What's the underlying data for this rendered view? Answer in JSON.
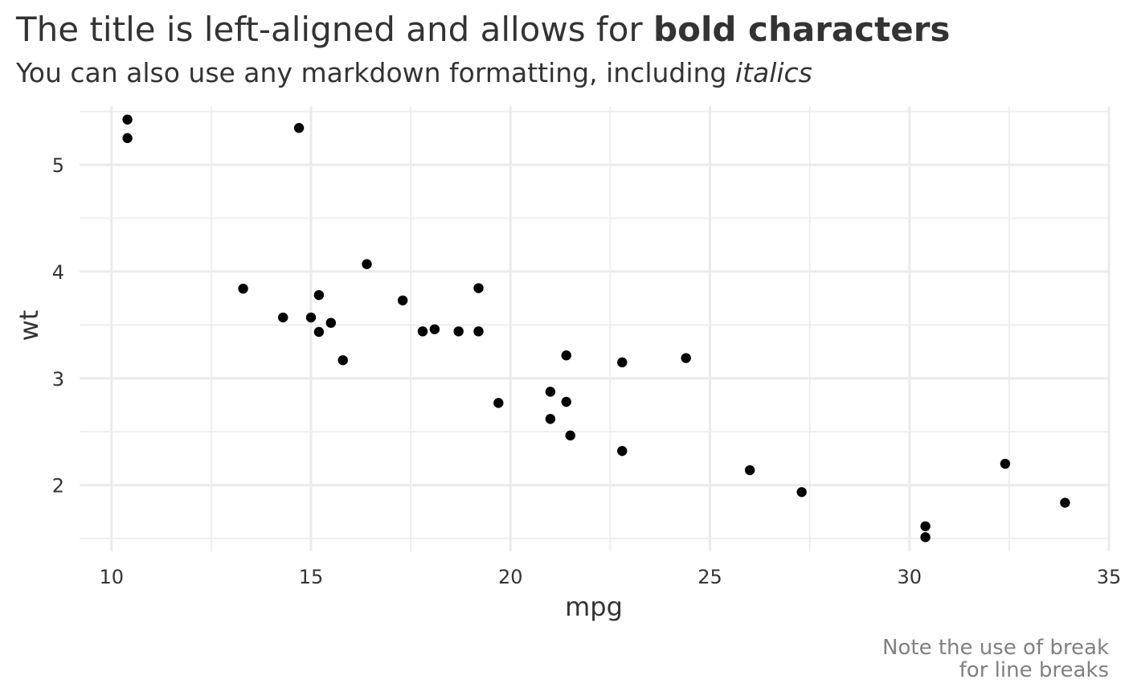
{
  "chart_data": {
    "type": "scatter",
    "title_plain": "The title is left-aligned and allows for ",
    "title_bold": "bold characters",
    "subtitle_plain": "You can also use any markdown formatting, including ",
    "subtitle_italic": "italics",
    "xlabel": "mpg",
    "ylabel": "wt",
    "caption": [
      "Note the use of break",
      "for line breaks"
    ],
    "xlim": [
      9.2,
      35
    ],
    "ylim": [
      1.38,
      5.55
    ],
    "x_ticks": [
      10,
      15,
      20,
      25,
      30,
      35
    ],
    "y_ticks": [
      2,
      3,
      4,
      5
    ],
    "x_minor": [
      12.5,
      17.5,
      22.5,
      27.5,
      32.5
    ],
    "y_minor": [
      1.5,
      2.5,
      3.5,
      4.5,
      5.5
    ],
    "grid": true,
    "points": [
      {
        "x": 21.0,
        "y": 2.62
      },
      {
        "x": 21.0,
        "y": 2.875
      },
      {
        "x": 22.8,
        "y": 2.32
      },
      {
        "x": 21.4,
        "y": 3.215
      },
      {
        "x": 18.7,
        "y": 3.44
      },
      {
        "x": 18.1,
        "y": 3.46
      },
      {
        "x": 14.3,
        "y": 3.57
      },
      {
        "x": 24.4,
        "y": 3.19
      },
      {
        "x": 22.8,
        "y": 3.15
      },
      {
        "x": 19.2,
        "y": 3.44
      },
      {
        "x": 17.8,
        "y": 3.44
      },
      {
        "x": 16.4,
        "y": 4.07
      },
      {
        "x": 17.3,
        "y": 3.73
      },
      {
        "x": 15.2,
        "y": 3.78
      },
      {
        "x": 10.4,
        "y": 5.25
      },
      {
        "x": 10.4,
        "y": 5.424
      },
      {
        "x": 14.7,
        "y": 5.345
      },
      {
        "x": 32.4,
        "y": 2.2
      },
      {
        "x": 30.4,
        "y": 1.615
      },
      {
        "x": 33.9,
        "y": 1.835
      },
      {
        "x": 21.5,
        "y": 2.465
      },
      {
        "x": 15.5,
        "y": 3.52
      },
      {
        "x": 15.2,
        "y": 3.435
      },
      {
        "x": 13.3,
        "y": 3.84
      },
      {
        "x": 19.2,
        "y": 3.845
      },
      {
        "x": 27.3,
        "y": 1.935
      },
      {
        "x": 26.0,
        "y": 2.14
      },
      {
        "x": 30.4,
        "y": 1.513
      },
      {
        "x": 15.8,
        "y": 3.17
      },
      {
        "x": 19.7,
        "y": 2.77
      },
      {
        "x": 15.0,
        "y": 3.57
      },
      {
        "x": 21.4,
        "y": 2.78
      }
    ]
  }
}
